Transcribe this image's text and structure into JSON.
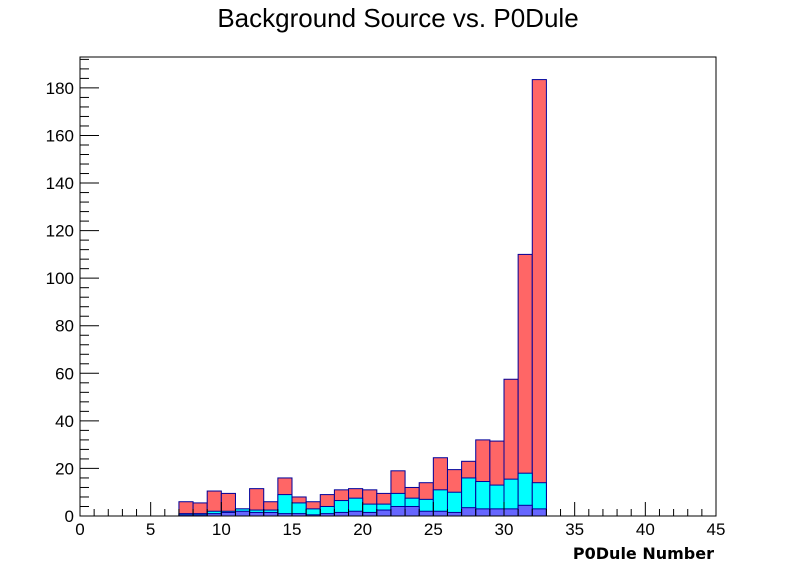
{
  "chart_data": {
    "type": "bar",
    "title": "Background Source vs. P0Dule",
    "xlabel": "P0Dule Number",
    "ylabel": "",
    "xlim": [
      0,
      45
    ],
    "ylim": [
      0,
      193
    ],
    "grid": false,
    "stacked": true,
    "bin_width": 1,
    "x_ticks": [
      0,
      5,
      10,
      15,
      20,
      25,
      30,
      35,
      40,
      45
    ],
    "y_ticks": [
      0,
      20,
      40,
      60,
      80,
      100,
      120,
      140,
      160,
      180
    ],
    "x_bins": [
      7,
      8,
      9,
      10,
      11,
      12,
      13,
      14,
      15,
      16,
      17,
      18,
      19,
      20,
      21,
      22,
      23,
      24,
      25,
      26,
      27,
      28,
      29,
      30,
      31,
      32
    ],
    "series": [
      {
        "color": "#ff6666",
        "values": [
          6,
          5.5,
          10.5,
          9.5,
          3,
          11.5,
          6,
          16,
          8,
          6,
          9,
          11,
          11.5,
          11,
          9.5,
          19,
          12,
          14,
          24.5,
          19.5,
          23,
          32,
          31.5,
          57.5,
          110,
          183.5
        ]
      },
      {
        "color": "#00ffff",
        "values": [
          1,
          1,
          2,
          2,
          3,
          2.5,
          2.5,
          9,
          5.5,
          3,
          4,
          6.5,
          7.5,
          5,
          5,
          9.5,
          7.5,
          7,
          11,
          10,
          16,
          14.5,
          13,
          15.5,
          18,
          14
        ]
      },
      {
        "color": "#6666ff",
        "values": [
          0.5,
          0.5,
          1,
          1.5,
          2,
          1.5,
          1.5,
          1,
          1,
          0.5,
          1,
          1.5,
          2,
          1.5,
          2.5,
          4,
          4,
          2,
          2,
          1.5,
          3.5,
          3,
          3,
          3,
          4.5,
          3
        ]
      }
    ],
    "outline_color": "#000099"
  }
}
